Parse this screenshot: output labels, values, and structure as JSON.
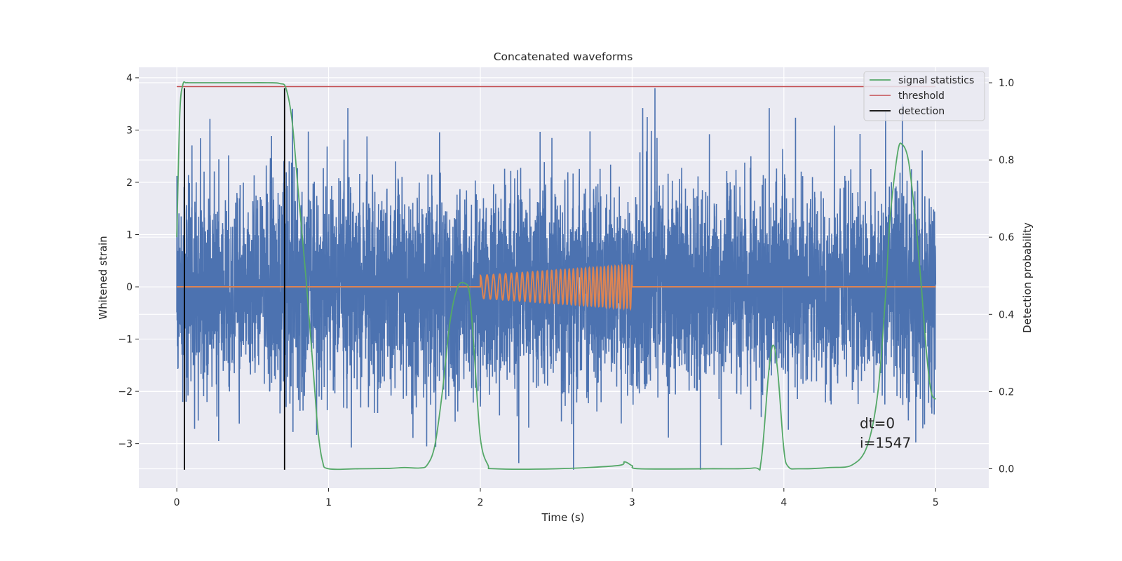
{
  "chart_data": {
    "type": "line",
    "title": "Concatenated waveforms",
    "xlabel": "Time (s)",
    "ylabel": "Whitened strain",
    "y2label": "Detection probability",
    "xlim": [
      -0.25,
      5.35
    ],
    "ylim": [
      -3.85,
      4.2
    ],
    "y2lim": [
      -0.05,
      1.04
    ],
    "xticks": [
      0,
      1,
      2,
      3,
      4,
      5
    ],
    "yticks": [
      -3,
      -2,
      -1,
      0,
      1,
      2,
      3,
      4
    ],
    "y2ticks": [
      0.0,
      0.2,
      0.4,
      0.6,
      0.8,
      1.0
    ],
    "xtick_labels": [
      "0",
      "1",
      "2",
      "3",
      "4",
      "5"
    ],
    "ytick_labels": [
      "−3",
      "−2",
      "−1",
      "0",
      "1",
      "2",
      "3",
      "4"
    ],
    "y2tick_labels": [
      "0.0",
      "0.2",
      "0.4",
      "0.6",
      "0.8",
      "1.0"
    ],
    "grid": true,
    "legend_position": "top-right",
    "colors": {
      "strain": "#4c72b0",
      "template": "#dd8452",
      "signal_statistics": "#55a868",
      "threshold": "#c44e52",
      "detection": "#000000",
      "background": "#eaeaf2",
      "grid": "#ffffff"
    },
    "series": [
      {
        "name": "signal statistics",
        "axis": "right",
        "x": [
          0,
          0.02,
          0.04,
          0.06,
          0.08,
          0.1,
          0.2,
          0.4,
          0.6,
          0.68,
          0.72,
          0.76,
          0.8,
          0.85,
          0.9,
          0.93,
          0.96,
          1.0,
          1.2,
          1.4,
          1.5,
          1.6,
          1.65,
          1.7,
          1.75,
          1.8,
          1.85,
          1.9,
          1.93,
          1.96,
          2.0,
          2.05,
          2.1,
          2.5,
          2.9,
          2.95,
          3.0,
          3.05,
          3.5,
          3.8,
          3.85,
          3.9,
          3.93,
          3.96,
          4.0,
          4.03,
          4.1,
          4.3,
          4.45,
          4.55,
          4.62,
          4.67,
          4.7,
          4.75,
          4.78,
          4.82,
          4.86,
          4.9,
          4.94,
          4.97,
          5.0
        ],
        "y": [
          0.6,
          0.92,
          0.995,
          1.0,
          1.0,
          1.0,
          1.0,
          1.0,
          1.0,
          0.998,
          0.985,
          0.9,
          0.72,
          0.5,
          0.25,
          0.1,
          0.02,
          0.0,
          0.0,
          0.001,
          0.003,
          0.002,
          0.01,
          0.06,
          0.2,
          0.38,
          0.47,
          0.48,
          0.45,
          0.3,
          0.08,
          0.01,
          0.0,
          0.0,
          0.008,
          0.018,
          0.008,
          0.0,
          0.0,
          0.002,
          0.02,
          0.25,
          0.32,
          0.25,
          0.05,
          0.005,
          0.0,
          0.003,
          0.01,
          0.06,
          0.2,
          0.45,
          0.65,
          0.82,
          0.84,
          0.8,
          0.67,
          0.5,
          0.3,
          0.2,
          0.18
        ]
      },
      {
        "name": "threshold",
        "axis": "right",
        "x": [
          0,
          5
        ],
        "y": [
          0.99,
          0.99
        ]
      },
      {
        "name": "detection",
        "axis": "left",
        "x": [
          0.05,
          0.71
        ],
        "y": [
          -3.5,
          3.8
        ]
      },
      {
        "name": "",
        "axis": "left",
        "x_range": [
          0,
          5
        ],
        "amplitude_typical": 1.6,
        "peak_max": 3.8,
        "peak_min": -3.5
      },
      {
        "name": "",
        "axis": "left",
        "x_range": [
          2,
          3
        ],
        "amplitude_start": 0.22,
        "amplitude_end": 0.42,
        "frequency_start_hz": 22,
        "frequency_end_hz": 46
      }
    ],
    "annotation": {
      "line1": "dt=0",
      "line2": "i=1547",
      "x": 4.5,
      "y": -2.7
    }
  }
}
